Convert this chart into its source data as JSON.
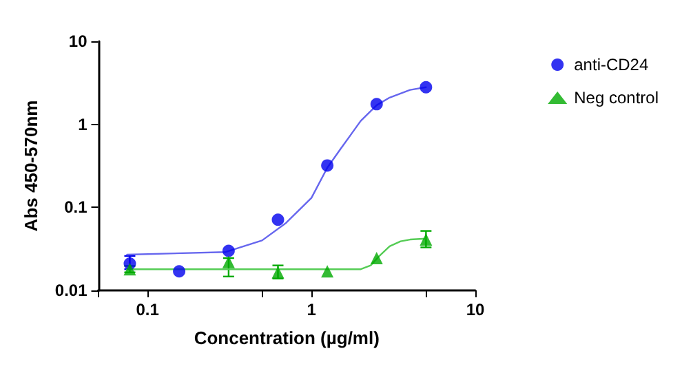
{
  "chart_data": {
    "type": "scatter",
    "xlabel": "Concentration (µg/ml)",
    "ylabel": "Abs 450-570nm",
    "log": "xy",
    "xlim": [
      0.05,
      10
    ],
    "xticks": [
      {
        "value": 0.05,
        "label": null
      },
      0.1,
      {
        "value": 0.5,
        "label": null
      },
      1,
      {
        "value": 5,
        "label": null
      },
      10
    ],
    "ylim": [
      0.01,
      10
    ],
    "yticks": [
      0.01,
      0.1,
      1,
      10
    ],
    "grid": false,
    "legend": "top right",
    "x": [
      0.078,
      0.156,
      0.3125,
      0.625,
      1.25,
      2.5,
      5
    ],
    "series": [
      {
        "name": "anti-CD24",
        "color": "#0000ee",
        "marker": "circle",
        "values": [
          0.021,
          0.017,
          0.03,
          0.071,
          0.32,
          1.75,
          2.8
        ],
        "errors": [
          [
            0.018,
            0.026
          ],
          null,
          null,
          null,
          null,
          null,
          null
        ]
      },
      {
        "name": "Neg control",
        "color": "#00aa00",
        "marker": "triangle",
        "values": [
          0.018,
          null,
          0.022,
          0.0165,
          0.017,
          0.0245,
          0.041
        ],
        "errors": [
          [
            0.0165,
            0.0197
          ],
          null,
          [
            0.0147,
            0.0245
          ],
          [
            0.0139,
            0.02
          ],
          null,
          null,
          [
            0.033,
            0.052
          ]
        ]
      },
      {
        "type": "line",
        "color": "#6666ee",
        "marker": "none",
        "line_style": "solid",
        "x": [
          0.075,
          0.3,
          0.5,
          0.7,
          1,
          1.25,
          1.5,
          2,
          2.5,
          3,
          4,
          5
        ],
        "values": [
          0.027,
          0.029,
          0.04,
          0.065,
          0.13,
          0.3,
          0.5,
          1.1,
          1.7,
          2.1,
          2.6,
          2.8
        ]
      },
      {
        "type": "line",
        "color": "#55cc55",
        "marker": "none",
        "line_style": "solid",
        "x": [
          0.075,
          2,
          2.3,
          2.6,
          3,
          3.5,
          4,
          5
        ],
        "values": [
          0.018,
          0.018,
          0.02,
          0.026,
          0.034,
          0.039,
          0.041,
          0.042
        ]
      }
    ]
  }
}
